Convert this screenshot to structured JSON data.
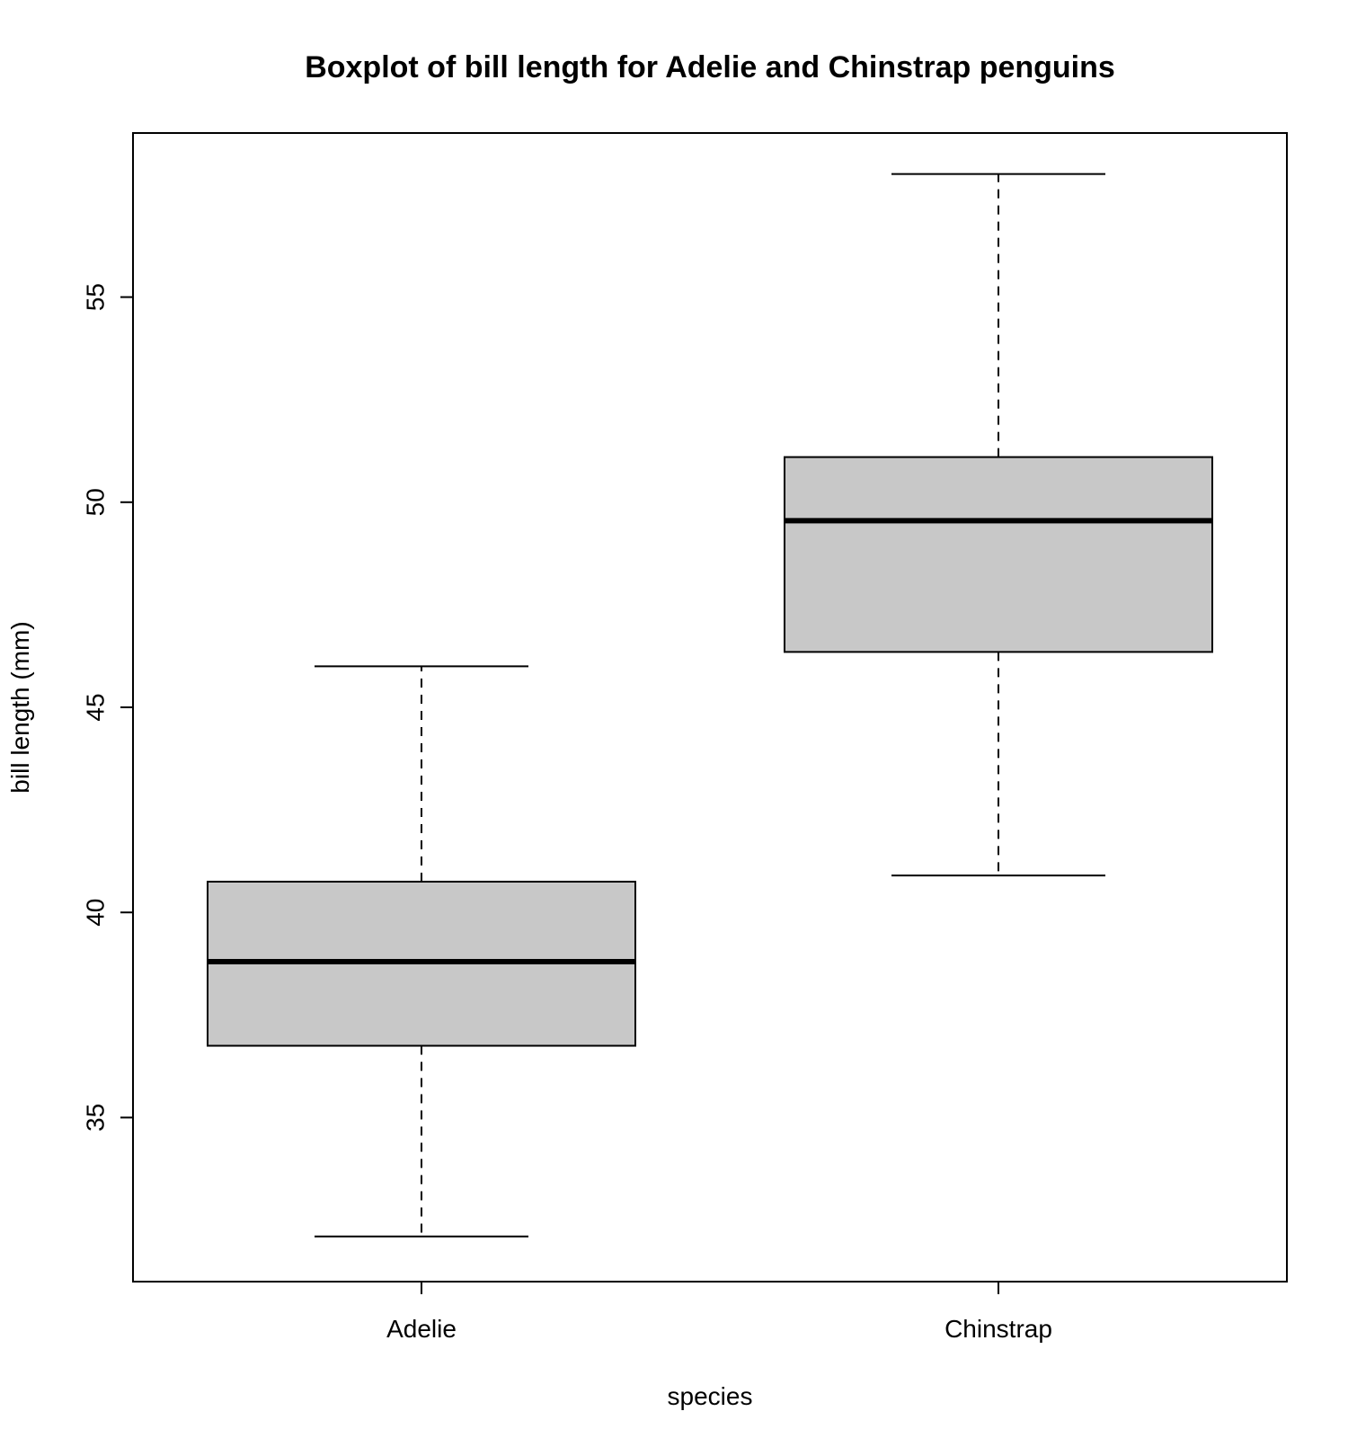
{
  "chart_data": {
    "type": "boxplot",
    "title": "Boxplot of bill length for Adelie and Chinstrap penguins",
    "xlabel": "species",
    "ylabel": "bill length (mm)",
    "categories": [
      "Adelie",
      "Chinstrap"
    ],
    "ylim": [
      31,
      59
    ],
    "yticks": [
      35,
      40,
      45,
      50,
      55
    ],
    "grid": false,
    "box_fill": "#c8c8c8",
    "line_color": "#000000",
    "boxes": [
      {
        "category": "Adelie",
        "min": 32.1,
        "q1": 36.75,
        "median": 38.8,
        "q3": 40.75,
        "max": 46.0
      },
      {
        "category": "Chinstrap",
        "min": 40.9,
        "q1": 46.35,
        "median": 49.55,
        "q3": 51.1,
        "max": 58.0
      }
    ]
  }
}
